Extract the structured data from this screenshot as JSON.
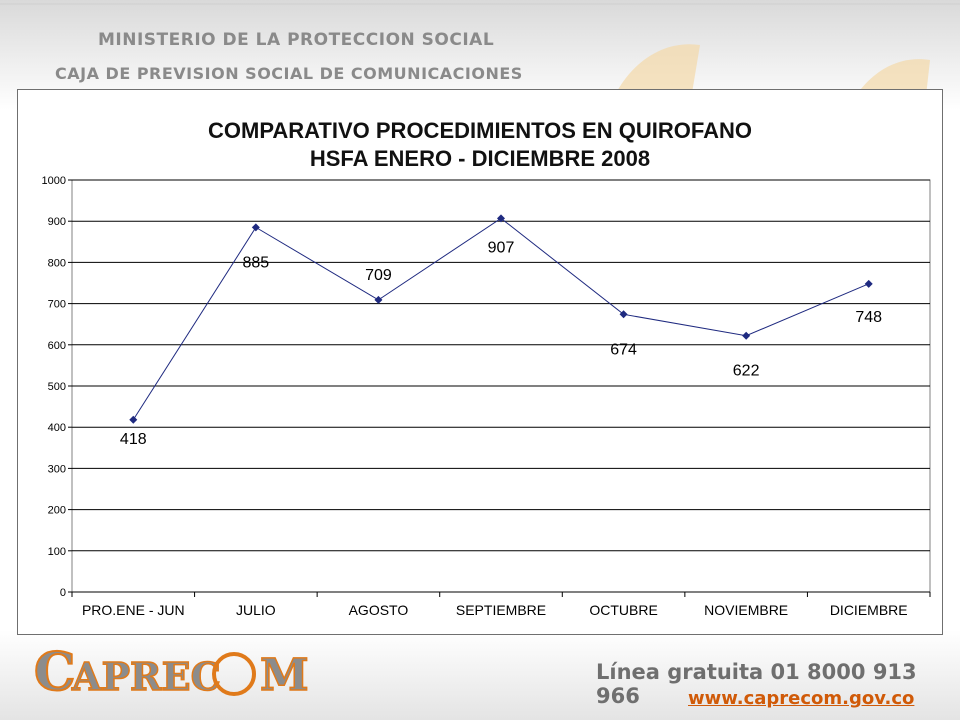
{
  "header": {
    "line1": "MINISTERIO DE LA PROTECCION SOCIAL",
    "line2": "CAJA DE PREVISION SOCIAL DE COMUNICACIONES"
  },
  "footer": {
    "logo_text": "CAPRECOM",
    "hotline": "Línea gratuita 01 8000 913 966",
    "website": "www.caprecom.gov.co"
  },
  "colors": {
    "series": "#1f2a80",
    "grid": "#000000",
    "accent_orange": "#e07a1a",
    "logo_gray": "#8c8c8c"
  },
  "chart_data": {
    "type": "line",
    "title_line1": "COMPARATIVO PROCEDIMIENTOS EN QUIROFANO",
    "title_line2": "HSFA  ENERO - DICIEMBRE 2008",
    "categories": [
      "PRO.ENE - JUN",
      "JULIO",
      "AGOSTO",
      "SEPTIEMBRE",
      "OCTUBRE",
      "NOVIEMBRE",
      "DICIEMBRE"
    ],
    "values": [
      418,
      885,
      709,
      907,
      674,
      622,
      748
    ],
    "data_labels": [
      "418",
      "885",
      "709",
      "907",
      "674",
      "622",
      "748"
    ],
    "ylim": [
      0,
      1000
    ],
    "yticks": [
      "0",
      "100",
      "200",
      "300",
      "400",
      "500",
      "600",
      "700",
      "800",
      "900",
      "1000"
    ],
    "grid": true,
    "legend": "none"
  }
}
